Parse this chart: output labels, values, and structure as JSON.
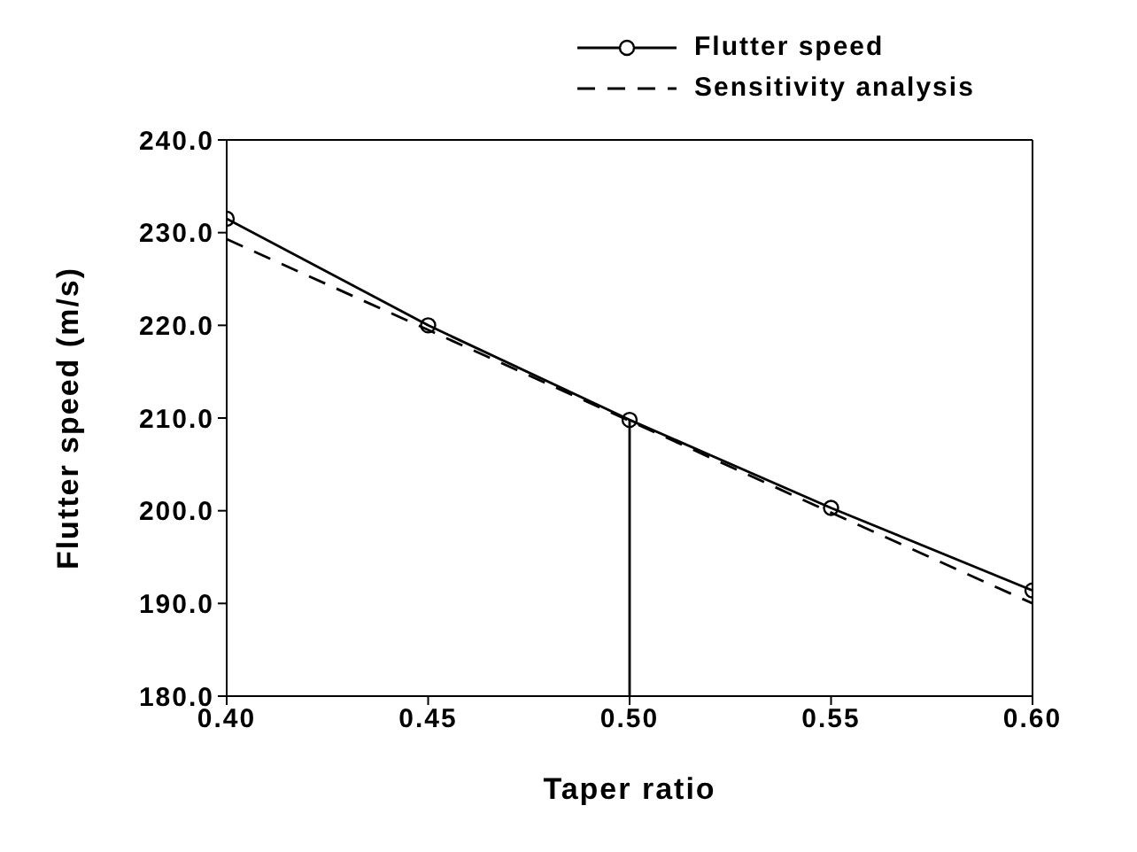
{
  "chart_data": {
    "type": "line",
    "xlabel": "Taper ratio",
    "ylabel": "Flutter speed  (m/s)",
    "x": [
      0.4,
      0.45,
      0.5,
      0.55,
      0.6
    ],
    "series": [
      {
        "name": "Flutter speed",
        "color": "#000000",
        "values": [
          231.5,
          220.0,
          209.8,
          200.3,
          191.4
        ],
        "marker": "circle",
        "line_style": "solid"
      },
      {
        "name": "Sensitivity analysis",
        "color": "#000000",
        "values": [
          229.3,
          219.5,
          209.7,
          199.8,
          190.0
        ],
        "marker": "none",
        "line_style": "dashed"
      },
      {
        "color": "#000000",
        "x": [
          0.5,
          0.5
        ],
        "values": [
          180,
          209.8
        ],
        "marker": "none",
        "line_style": "solid"
      }
    ],
    "xlim": [
      0.4,
      0.6
    ],
    "xticks": [
      {
        "value": 0.4,
        "label": "0.40"
      },
      {
        "value": 0.45,
        "label": "0.45"
      },
      {
        "value": 0.5,
        "label": "0.50"
      },
      {
        "value": 0.55,
        "label": "0.55"
      },
      {
        "value": 0.6,
        "label": "0.60"
      }
    ],
    "ylim": [
      180,
      240
    ],
    "yticks": [
      {
        "value": 180,
        "label": "180.0"
      },
      {
        "value": 190,
        "label": "190.0"
      },
      {
        "value": 200,
        "label": "200.0"
      },
      {
        "value": 210,
        "label": "210.0"
      },
      {
        "value": 220,
        "label": "220.0"
      },
      {
        "value": 230,
        "label": "230.0"
      },
      {
        "value": 240,
        "label": "240.0"
      }
    ],
    "legend": "top right"
  }
}
